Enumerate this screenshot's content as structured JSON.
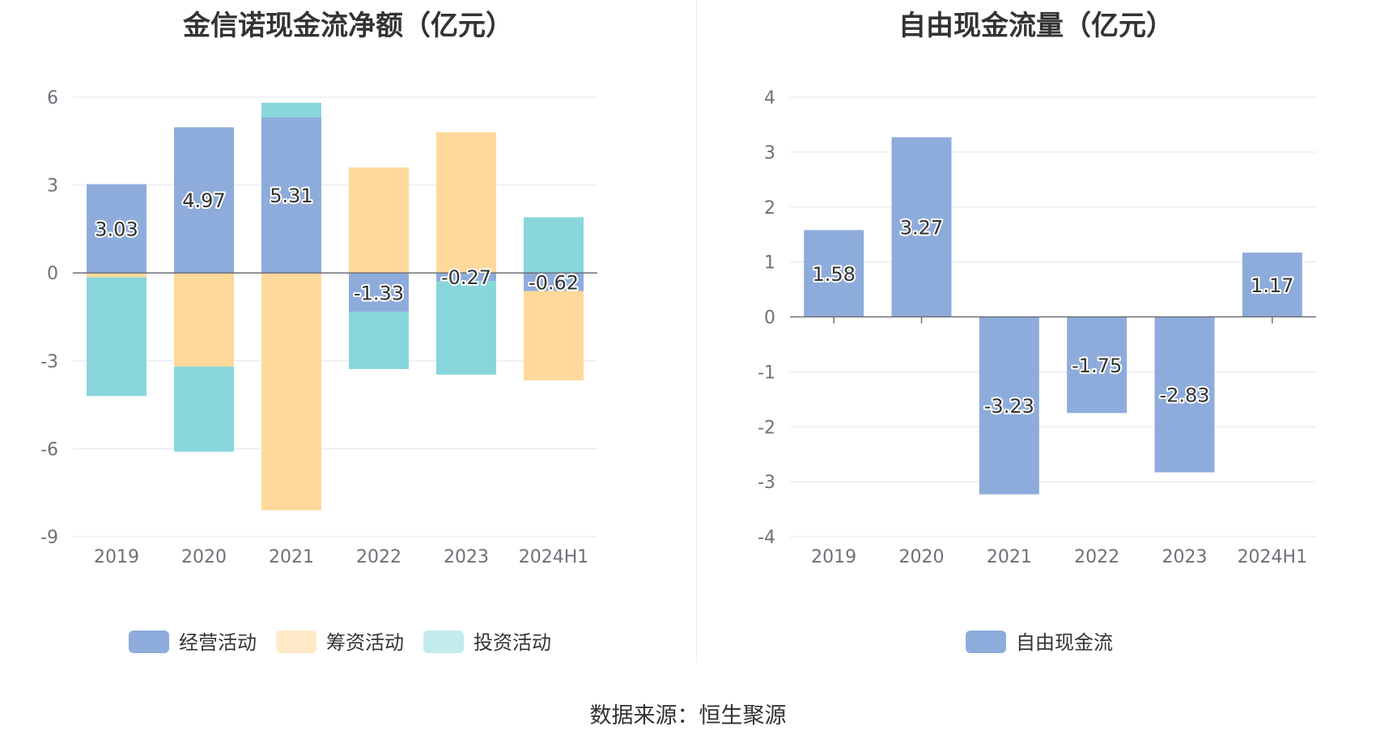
{
  "source_text": "数据来源：恒生聚源",
  "colors": {
    "operating": "#8eacdb",
    "financing": "#ffd99b",
    "investing": "#88d6db",
    "financing_legend": "#ffe9c7",
    "investing_legend": "#c2ebee",
    "fcf": "#8eacdb",
    "grid": "#e1e5f0",
    "axis_text": "#6e7079",
    "legend_text": "#333333"
  },
  "chart_data": [
    {
      "type": "bar",
      "stacked": true,
      "title": "金信诺现金流净额（亿元）",
      "categories": [
        "2019",
        "2020",
        "2021",
        "2022",
        "2023",
        "2024H1"
      ],
      "ylim": [
        -9,
        6
      ],
      "yticks": [
        6,
        3,
        0,
        -3,
        -6,
        -9
      ],
      "grid": true,
      "legend_position": "bottom",
      "series": [
        {
          "name": "经营活动",
          "values": [
            3.03,
            4.97,
            5.31,
            -1.33,
            -0.27,
            -0.62
          ],
          "labels": [
            "3.03",
            "4.97",
            "5.31",
            "-1.33",
            "-0.27",
            "-0.62"
          ]
        },
        {
          "name": "筹资活动",
          "values": [
            -0.15,
            -3.2,
            -8.1,
            3.6,
            4.8,
            -3.05
          ]
        },
        {
          "name": "投资活动",
          "values": [
            -4.05,
            -2.9,
            0.5,
            -1.95,
            -3.2,
            1.9
          ]
        }
      ]
    },
    {
      "type": "bar",
      "title": "自由现金流量（亿元）",
      "categories": [
        "2019",
        "2020",
        "2021",
        "2022",
        "2023",
        "2024H1"
      ],
      "ylim": [
        -4,
        4
      ],
      "yticks": [
        4,
        3,
        2,
        1,
        0,
        -1,
        -2,
        -3,
        -4
      ],
      "grid": true,
      "legend_position": "bottom",
      "series": [
        {
          "name": "自由现金流",
          "values": [
            1.58,
            3.27,
            -3.23,
            -1.75,
            -2.83,
            1.17
          ],
          "labels": [
            "1.58",
            "3.27",
            "-3.23",
            "-1.75",
            "-2.83",
            "1.17"
          ]
        }
      ]
    }
  ]
}
